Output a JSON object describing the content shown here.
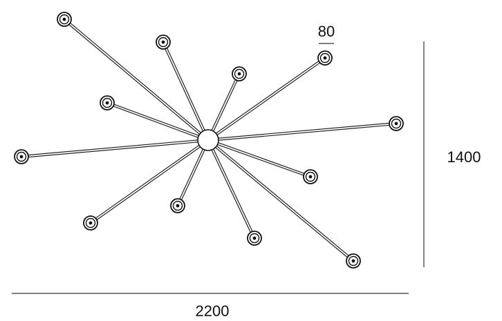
{
  "dimensions": {
    "width_label": "2200",
    "height_label": "1400",
    "endpoint_label": "80"
  },
  "fixture": {
    "arm_count": 12,
    "endpoints": [
      "endpoint-1",
      "endpoint-2",
      "endpoint-3",
      "endpoint-4",
      "endpoint-5",
      "endpoint-6",
      "endpoint-7",
      "endpoint-8",
      "endpoint-9",
      "endpoint-10",
      "endpoint-11",
      "endpoint-12"
    ]
  }
}
